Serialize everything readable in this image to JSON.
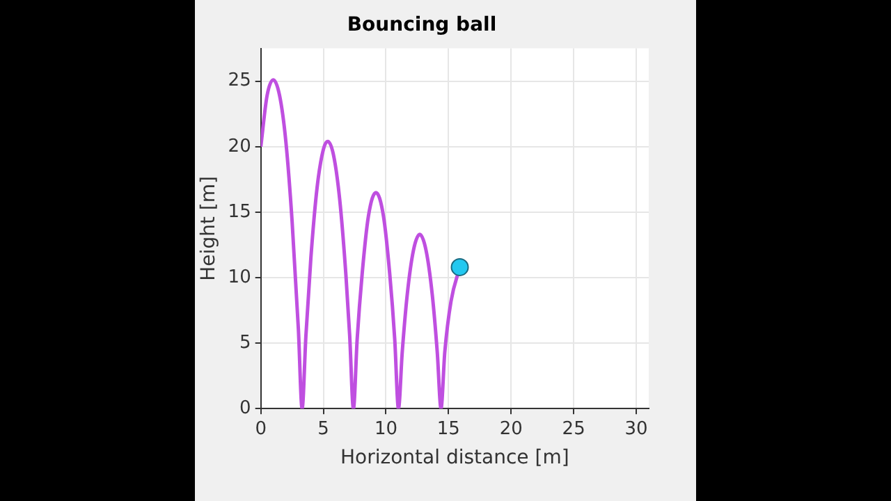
{
  "chart_data": {
    "type": "line",
    "title": "Bouncing ball",
    "xlabel": "Horizontal distance [m]",
    "ylabel": "Height [m]",
    "xlim": [
      0,
      31
    ],
    "xticks": [
      0,
      5,
      10,
      15,
      20,
      25,
      30
    ],
    "ylim": [
      0,
      27.5
    ],
    "yticks": [
      0,
      5,
      10,
      15,
      20,
      25
    ],
    "grid": true,
    "legend": false,
    "series": [
      {
        "color": "#bf4fe0",
        "marker": "none",
        "x": [
          0,
          0.5,
          1,
          1.5,
          2,
          2.5,
          3,
          3.3,
          3.6,
          4,
          4.5,
          5,
          5.35,
          5.8,
          6.3,
          6.8,
          7.1,
          7.4,
          7.7,
          8.1,
          8.6,
          9.2,
          9.8,
          10.3,
          10.7,
          11,
          11.3,
          11.7,
          12.2,
          12.7,
          13.2,
          13.7,
          14.1,
          14.4,
          14.7,
          15.2,
          15.9
        ],
        "values": [
          20,
          23.9,
          25.1,
          23.9,
          20.4,
          14.3,
          6.1,
          0,
          5.5,
          11.5,
          16.9,
          19.8,
          20.4,
          19.4,
          16,
          10.2,
          5.6,
          0,
          5.3,
          10.3,
          14.7,
          16.5,
          14.7,
          10.3,
          5.3,
          0,
          4.3,
          8.7,
          12.1,
          13.3,
          12.1,
          8.7,
          4.3,
          0,
          4.3,
          8.2,
          10.8
        ]
      },
      {
        "type": "scatter",
        "color": "#22c8f0",
        "marker": "circle",
        "x": [
          15.9
        ],
        "values": [
          10.8
        ]
      }
    ]
  }
}
